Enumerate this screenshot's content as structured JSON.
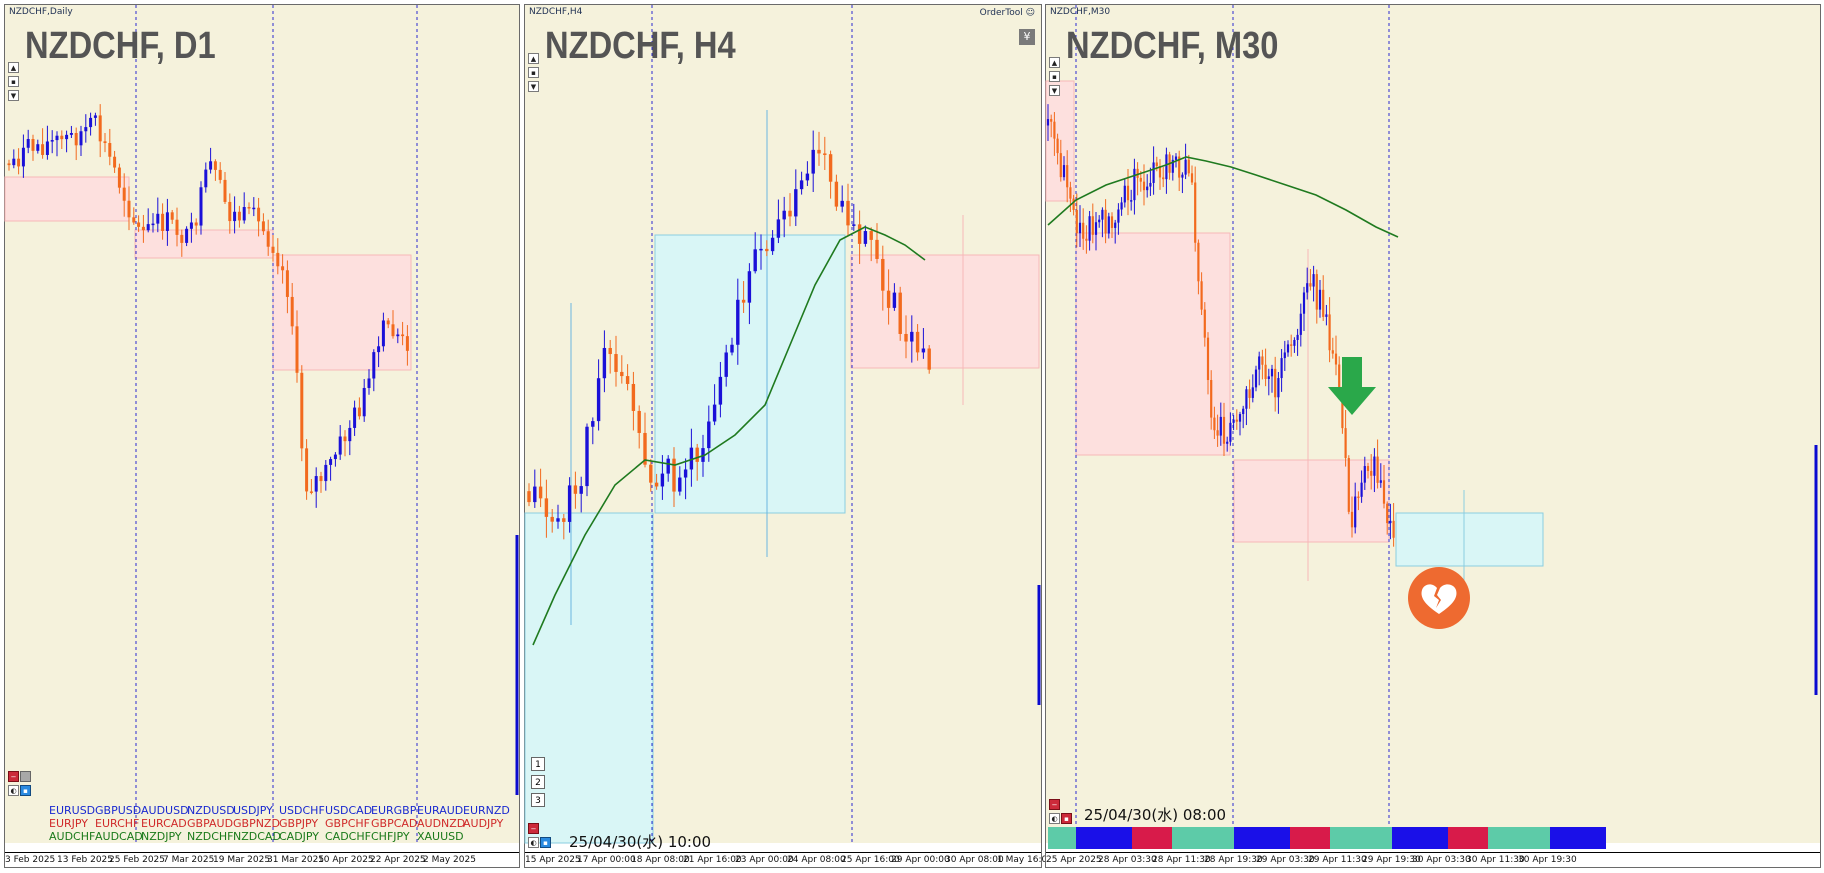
{
  "colors": {
    "chart_bg": "#f5f2dc",
    "bull_candle": "#1a10d8",
    "bear_candle": "#f26a1e",
    "ma_line": "#1f7a1f",
    "supply_zone": "#fde0de",
    "demand_zone": "#d9f6f6",
    "grid": "#2b2bd0",
    "sell_arrow": "#2aa84a",
    "strip_teal": "#5dcba8",
    "strip_blue": "#1a10e8",
    "strip_red": "#d81b4a"
  },
  "panels": [
    {
      "id": "d1",
      "window_title": "NZDCHF,Daily",
      "big_title": "NZDCHF, D1",
      "x_labels": [
        "3 Feb 2025",
        "13 Feb 2025",
        "25 Feb 2025",
        "7 Mar 2025",
        "19 Mar 2025",
        "31 Mar 2025",
        "10 Apr 2025",
        "22 Apr 2025",
        "2 May 2025"
      ],
      "pairs_row1": [
        "EURUSD",
        "GBPUSD",
        "AUDUSD",
        "NZDUSD",
        "USDJPY",
        "USDCHF",
        "USDCAD",
        "EURGBP",
        "EURAUD",
        "EURNZD"
      ],
      "pairs_row2": [
        "EURJPY",
        "EURCHF",
        "EURCAD",
        "GBPAUD",
        "GBPNZD",
        "GBPJPY",
        "GBPCHF",
        "GBPCAD",
        "AUDNZD",
        "AUDJPY"
      ],
      "pairs_row3": [
        "AUDCHF",
        "AUDCAD",
        "NZDJPY",
        "NZDCHF",
        "NZDCAD",
        "CADJPY",
        "CADCHF",
        "CHFJPY",
        "XAUUSD"
      ]
    },
    {
      "id": "h4",
      "window_title": "NZDCHF,H4",
      "big_title": "NZDCHF, H4",
      "order_tool": "OrderTool",
      "yen_icon": "¥",
      "timestamp": "25/04/30(水) 10:00",
      "buttons": [
        "1",
        "2",
        "3"
      ],
      "x_labels": [
        "15 Apr 2025",
        "17 Apr 00:00",
        "18 Apr 08:00",
        "21 Apr 16:00",
        "23 Apr 00:00",
        "24 Apr 08:00",
        "25 Apr 16:00",
        "29 Apr 00:00",
        "30 Apr 08:00",
        "1 May 16:00"
      ]
    },
    {
      "id": "m30",
      "window_title": "NZDCHF,M30",
      "big_title": "NZDCHF, M30",
      "timestamp": "25/04/30(水) 08:00",
      "x_labels": [
        "25 Apr 2025",
        "28 Apr 03:30",
        "28 Apr 11:30",
        "28 Apr 19:30",
        "29 Apr 03:30",
        "29 Apr 11:30",
        "29 Apr 19:30",
        "30 Apr 03:30",
        "30 Apr 11:30",
        "30 Apr 19:30"
      ],
      "strip_colors": [
        "teal",
        "blue",
        "red",
        "teal",
        "blue",
        "red",
        "teal",
        "blue",
        "red",
        "teal",
        "blue"
      ]
    }
  ]
}
